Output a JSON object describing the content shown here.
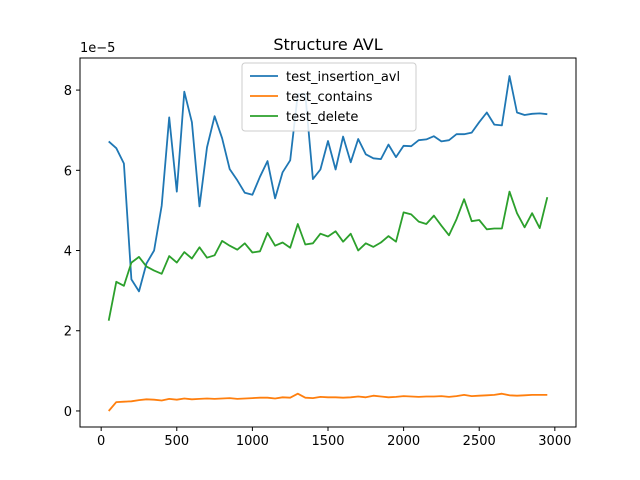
{
  "chart_data": {
    "type": "line",
    "title": "Structure AVL",
    "offset_text": "1e−5",
    "xlabel": "",
    "ylabel": "",
    "xlim": [
      -140,
      3140
    ],
    "ylim": [
      -0.4,
      8.8
    ],
    "xticks": [
      0,
      500,
      1000,
      1500,
      2000,
      2500,
      3000
    ],
    "yticks": [
      0,
      2,
      4,
      6,
      8
    ],
    "legend_position": "upper-center",
    "grid": false,
    "series": [
      {
        "name": "test_insertion_avl",
        "color": "#1f77b4",
        "x": [
          50,
          100,
          150,
          200,
          250,
          300,
          350,
          400,
          450,
          500,
          550,
          600,
          650,
          700,
          750,
          800,
          850,
          900,
          950,
          1000,
          1050,
          1100,
          1150,
          1200,
          1250,
          1300,
          1350,
          1400,
          1450,
          1500,
          1550,
          1600,
          1650,
          1700,
          1750,
          1800,
          1850,
          1900,
          1950,
          2000,
          2050,
          2100,
          2150,
          2200,
          2250,
          2300,
          2350,
          2400,
          2450,
          2500,
          2550,
          2600,
          2650,
          2700,
          2750,
          2800,
          2850,
          2900,
          2950
        ],
        "y": [
          6.72,
          6.55,
          6.17,
          3.28,
          2.98,
          3.68,
          4.0,
          5.12,
          7.32,
          5.47,
          7.96,
          7.2,
          5.1,
          6.57,
          7.35,
          6.8,
          6.03,
          5.75,
          5.44,
          5.39,
          5.84,
          6.23,
          5.3,
          5.95,
          6.25,
          7.9,
          7.9,
          5.78,
          6.02,
          6.73,
          6.02,
          6.84,
          6.2,
          6.78,
          6.4,
          6.3,
          6.28,
          6.64,
          6.33,
          6.61,
          6.6,
          6.75,
          6.77,
          6.85,
          6.72,
          6.75,
          6.9,
          6.9,
          6.94,
          7.2,
          7.44,
          7.14,
          7.12,
          8.35,
          7.44,
          7.38,
          7.41,
          7.42,
          7.4
        ]
      },
      {
        "name": "test_contains",
        "color": "#ff7f0e",
        "x": [
          50,
          100,
          150,
          200,
          250,
          300,
          350,
          400,
          450,
          500,
          550,
          600,
          650,
          700,
          750,
          800,
          850,
          900,
          950,
          1000,
          1050,
          1100,
          1150,
          1200,
          1250,
          1300,
          1350,
          1400,
          1450,
          1500,
          1550,
          1600,
          1650,
          1700,
          1750,
          1800,
          1850,
          1900,
          1950,
          2000,
          2050,
          2100,
          2150,
          2200,
          2250,
          2300,
          2350,
          2400,
          2450,
          2500,
          2550,
          2600,
          2650,
          2700,
          2750,
          2800,
          2850,
          2900,
          2950
        ],
        "y": [
          0.0,
          0.22,
          0.23,
          0.24,
          0.27,
          0.29,
          0.28,
          0.26,
          0.3,
          0.28,
          0.31,
          0.29,
          0.3,
          0.31,
          0.3,
          0.31,
          0.32,
          0.3,
          0.31,
          0.32,
          0.33,
          0.33,
          0.31,
          0.34,
          0.33,
          0.43,
          0.33,
          0.32,
          0.35,
          0.34,
          0.34,
          0.33,
          0.34,
          0.36,
          0.34,
          0.38,
          0.36,
          0.34,
          0.35,
          0.37,
          0.36,
          0.35,
          0.36,
          0.36,
          0.37,
          0.35,
          0.37,
          0.4,
          0.37,
          0.38,
          0.39,
          0.4,
          0.43,
          0.39,
          0.38,
          0.39,
          0.4,
          0.4,
          0.4
        ]
      },
      {
        "name": "test_delete",
        "color": "#2ca02c",
        "x": [
          50,
          100,
          150,
          200,
          250,
          300,
          350,
          400,
          450,
          500,
          550,
          600,
          650,
          700,
          750,
          800,
          850,
          900,
          950,
          1000,
          1050,
          1100,
          1150,
          1200,
          1250,
          1300,
          1350,
          1400,
          1450,
          1500,
          1550,
          1600,
          1650,
          1700,
          1750,
          1800,
          1850,
          1900,
          1950,
          2000,
          2050,
          2100,
          2150,
          2200,
          2250,
          2300,
          2350,
          2400,
          2450,
          2500,
          2550,
          2600,
          2650,
          2700,
          2750,
          2800,
          2850,
          2900,
          2950
        ],
        "y": [
          2.25,
          3.22,
          3.12,
          3.7,
          3.84,
          3.6,
          3.5,
          3.42,
          3.86,
          3.7,
          3.96,
          3.8,
          4.08,
          3.82,
          3.88,
          4.24,
          4.12,
          4.02,
          4.18,
          3.95,
          3.98,
          4.44,
          4.12,
          4.2,
          4.07,
          4.66,
          4.15,
          4.18,
          4.42,
          4.35,
          4.48,
          4.22,
          4.42,
          4.0,
          4.18,
          4.09,
          4.2,
          4.36,
          4.22,
          4.95,
          4.9,
          4.72,
          4.66,
          4.87,
          4.62,
          4.38,
          4.78,
          5.28,
          4.73,
          4.76,
          4.53,
          4.55,
          4.55,
          5.47,
          4.93,
          4.58,
          4.93,
          4.56,
          5.33
        ]
      }
    ]
  }
}
